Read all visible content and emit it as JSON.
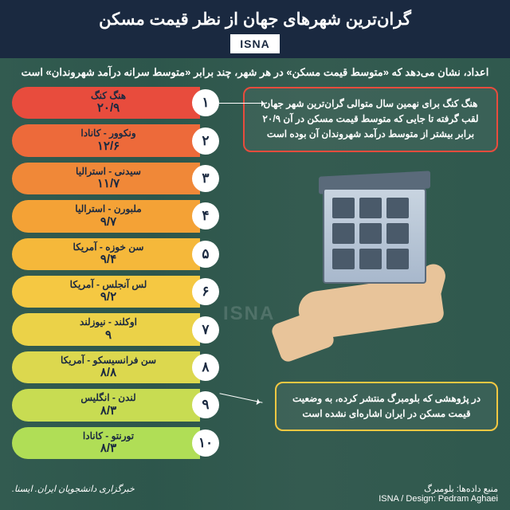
{
  "header": {
    "title": "گران‌ترین شهرهای جهان از نظر قیمت مسکن",
    "logo": "ISNA",
    "bg_color": "#1a2940"
  },
  "subtitle": "اعداد، نشان می‌دهد که «متوسط قیمت مسکن» در هر شهر، چند برابر «متوسط سرانه درآمد شهروندان» است",
  "info_top": {
    "text": "هنگ کنگ برای نهمین سال متوالی گران‌ترین شهر جهان لقب گرفته تا جایی که متوسط قیمت مسکن در آن ۲۰/۹ برابر بیشتر از متوسط درآمد شهروندان آن بوده است",
    "border_color": "#e84c3d"
  },
  "info_bottom": {
    "text": "در پژوهشی که بلومبرگ منتشر کرده، به وضعیت قیمت مسکن در ایران اشاره‌ای نشده است",
    "border_color": "#f5c842"
  },
  "items": [
    {
      "rank": "۱",
      "city": "هنگ کنگ",
      "value": "۲۰/۹",
      "color": "#e84c3d"
    },
    {
      "rank": "۲",
      "city": "ونکوور - کانادا",
      "value": "۱۲/۶",
      "color": "#ed6a3a"
    },
    {
      "rank": "۳",
      "city": "سیدنی - استرالیا",
      "value": "۱۱/۷",
      "color": "#f08838"
    },
    {
      "rank": "۴",
      "city": "ملبورن - استرالیا",
      "value": "۹/۷",
      "color": "#f4a236"
    },
    {
      "rank": "۵",
      "city": "سن خوزه - آمریکا",
      "value": "۹/۴",
      "color": "#f5b83a"
    },
    {
      "rank": "۶",
      "city": "لس آنجلس - آمریکا",
      "value": "۹/۲",
      "color": "#f5c842"
    },
    {
      "rank": "۷",
      "city": "اوکلند - نیوزلند",
      "value": "۹",
      "color": "#ebd248"
    },
    {
      "rank": "۸",
      "city": "سن فرانسیسکو - آمریکا",
      "value": "۸/۸",
      "color": "#dcd84e"
    },
    {
      "rank": "۹",
      "city": "لندن - انگلیس",
      "value": "۸/۳",
      "color": "#c8dc52"
    },
    {
      "rank": "۱۰",
      "city": "تورنتو - کانادا",
      "value": "۸/۳",
      "color": "#b0de56"
    }
  ],
  "footer": {
    "source": "منبع داده‌ها: بلومبرگ",
    "credit": "ISNA / Design: Pedram Aghaei",
    "agency": "خبرگزاری دانشجویان ایران. ایسنا."
  },
  "watermark": "ISNA",
  "styling": {
    "page_bg_overlay": "rgba(40,80,70,0.85)",
    "text_color": "#ffffff",
    "pill_text_color": "#1a2940",
    "rank_bg": "#ffffff"
  }
}
